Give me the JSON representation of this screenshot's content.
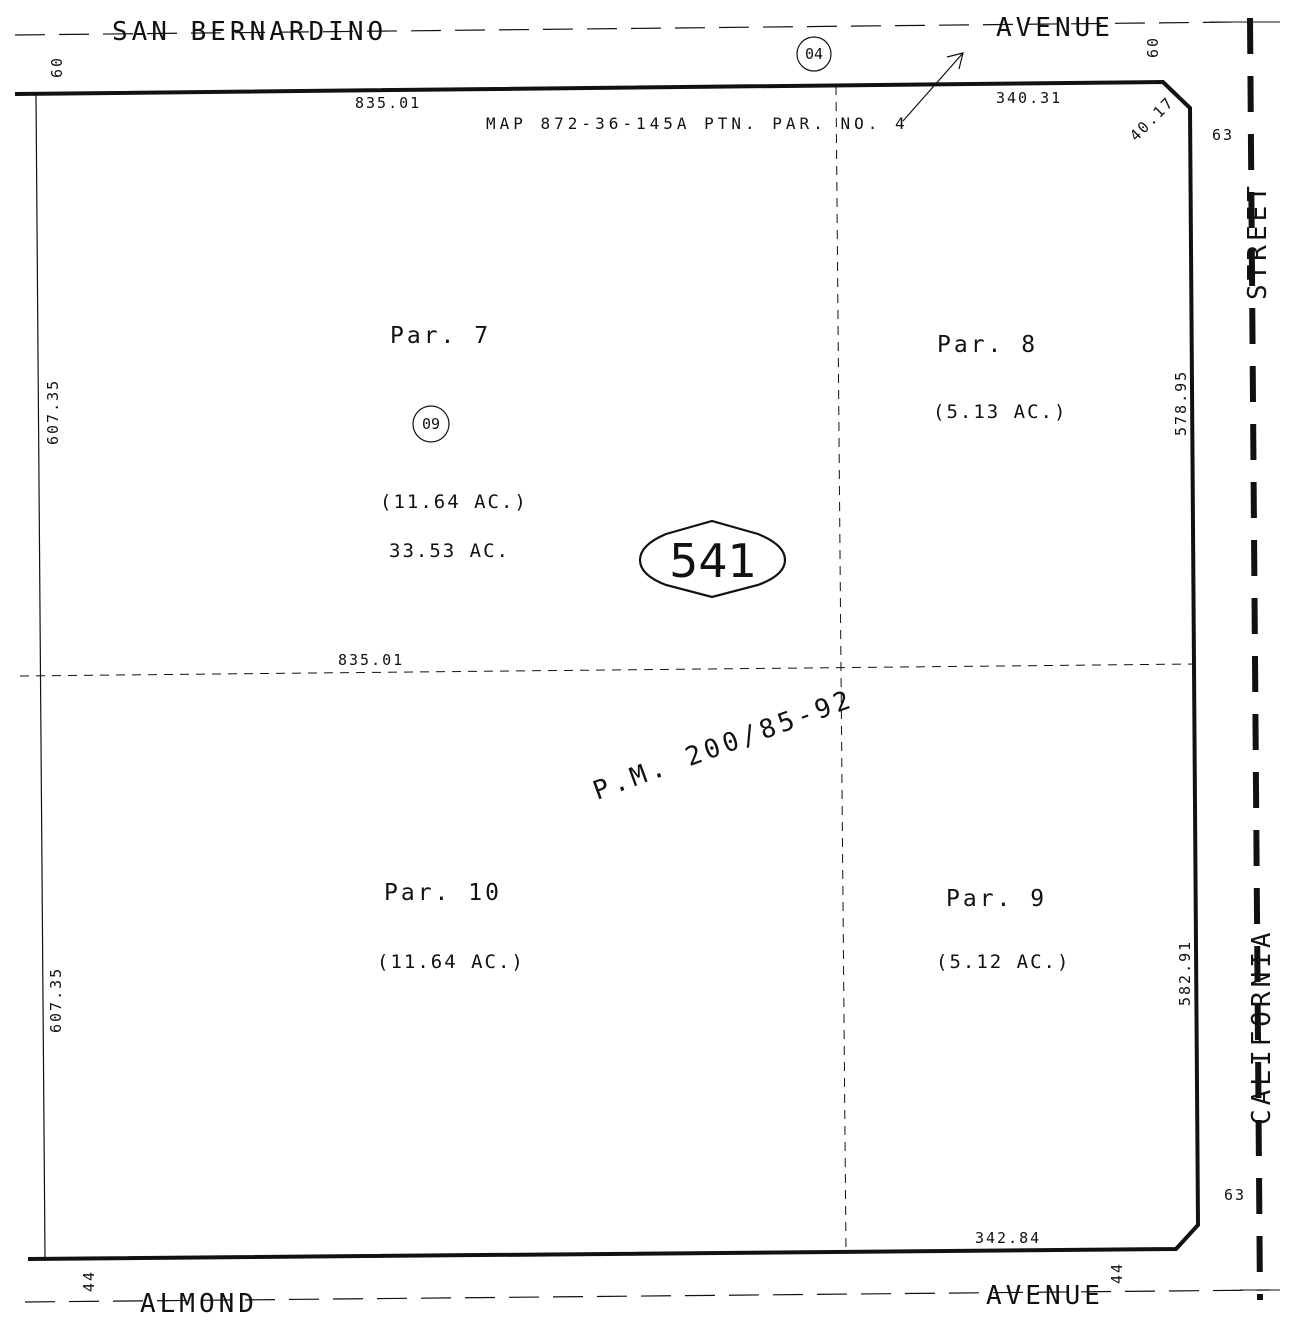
{
  "streets": {
    "north_a": "SAN BERNARDINO",
    "north_b": "AVENUE",
    "south_a": "ALMOND",
    "south_b": "AVENUE",
    "east_a": "STREET",
    "east_b": "CALIFORNIA"
  },
  "widths": {
    "north_left": "60",
    "north_right": "60",
    "east_top": "63",
    "east_bottom": "63",
    "south_left": "44",
    "south_right": "44"
  },
  "dimensions": {
    "top_left": "835.01",
    "top_right": "340.31",
    "corner": "40.17",
    "middle": "835.01",
    "bottom_right": "342.84",
    "left_upper": "607.35",
    "left_lower": "607.35",
    "right_upper": "578.95",
    "right_lower": "582.91"
  },
  "note": "MAP 872-36-145A PTN. PAR. NO. 4",
  "circled": {
    "top": "04",
    "par7": "09"
  },
  "parcels": {
    "p7": {
      "label": "Par. 7",
      "acres": "(11.64 AC.)",
      "total": "33.53 AC."
    },
    "p8": {
      "label": "Par. 8",
      "acres": "(5.13 AC.)"
    },
    "p9": {
      "label": "Par. 9",
      "acres": "(5.12 AC.)"
    },
    "p10": {
      "label": "Par. 10",
      "acres": "(11.64 AC.)"
    }
  },
  "map_number": "541",
  "parcel_map": "P.M. 200/85-92"
}
